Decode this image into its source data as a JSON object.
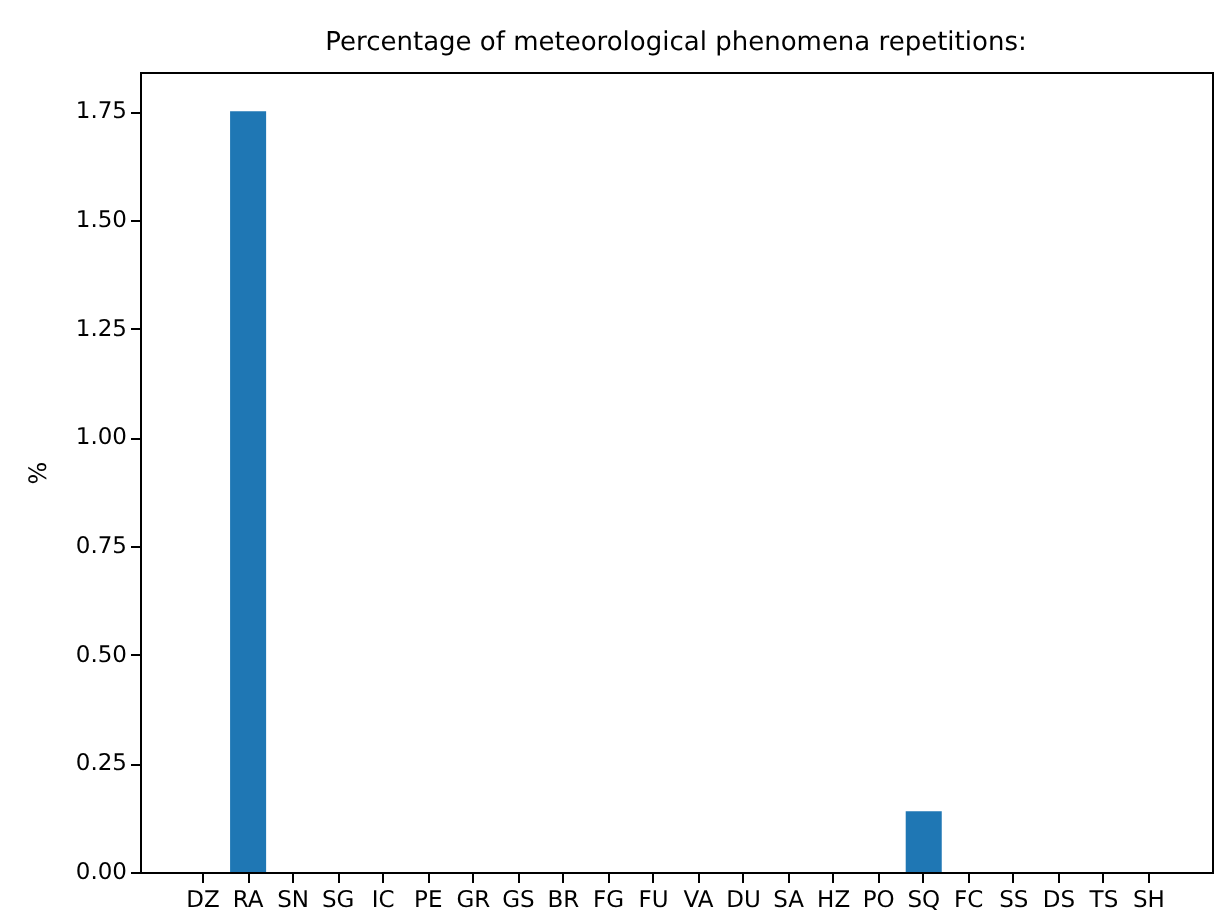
{
  "chart_data": {
    "type": "bar",
    "title": "Percentage of meteorological phenomena repetitions:",
    "ylabel": "%",
    "categories": [
      "DZ",
      "RA",
      "SN",
      "SG",
      "IC",
      "PE",
      "GR",
      "GS",
      "BR",
      "FG",
      "FU",
      "VA",
      "DU",
      "SA",
      "HZ",
      "PO",
      "SQ",
      "FC",
      "SS",
      "DS",
      "TS",
      "SH"
    ],
    "values": [
      0,
      1.75,
      0,
      0,
      0,
      0,
      0,
      0,
      0,
      0,
      0,
      0,
      0,
      0,
      0,
      0,
      0.14,
      0,
      0,
      0,
      0,
      0
    ],
    "color": "#1f77b4",
    "ylim": [
      0,
      1.84
    ],
    "yticks": [
      {
        "value": 0,
        "label": "0.00"
      },
      0.25,
      {
        "value": 0.5,
        "label": "0.50"
      },
      0.75,
      {
        "value": 1,
        "label": "1.00"
      },
      1.25,
      {
        "value": 1.5,
        "label": "1.50"
      },
      1.75
    ],
    "grid": false
  }
}
